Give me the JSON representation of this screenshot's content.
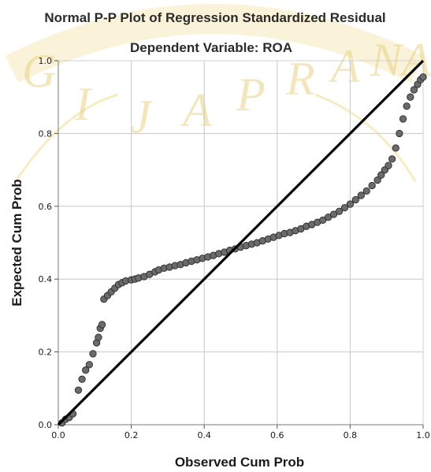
{
  "chart_data": {
    "type": "scatter",
    "title": "Normal P-P Plot of Regression Standardized Residual",
    "subtitle": "Dependent Variable: ROA",
    "xlabel": "Observed Cum Prob",
    "ylabel": "Expected Cum Prob",
    "xlim": [
      0,
      1
    ],
    "ylim": [
      0,
      1
    ],
    "x_ticks": [
      "0.0",
      "0.2",
      "0.4",
      "0.6",
      "0.8",
      "1.0"
    ],
    "y_ticks": [
      "0.0",
      "0.2",
      "0.4",
      "0.6",
      "0.8",
      "1.0"
    ],
    "grid": true,
    "reference_line": {
      "from": [
        0,
        0
      ],
      "to": [
        1,
        1
      ]
    },
    "series": [
      {
        "points": [
          [
            0.01,
            0.005
          ],
          [
            0.02,
            0.015
          ],
          [
            0.03,
            0.02
          ],
          [
            0.04,
            0.03
          ],
          [
            0.055,
            0.095
          ],
          [
            0.065,
            0.125
          ],
          [
            0.075,
            0.15
          ],
          [
            0.085,
            0.165
          ],
          [
            0.095,
            0.195
          ],
          [
            0.105,
            0.225
          ],
          [
            0.11,
            0.24
          ],
          [
            0.115,
            0.265
          ],
          [
            0.12,
            0.275
          ],
          [
            0.125,
            0.345
          ],
          [
            0.135,
            0.355
          ],
          [
            0.145,
            0.365
          ],
          [
            0.155,
            0.375
          ],
          [
            0.165,
            0.385
          ],
          [
            0.175,
            0.39
          ],
          [
            0.185,
            0.395
          ],
          [
            0.2,
            0.398
          ],
          [
            0.21,
            0.4
          ],
          [
            0.22,
            0.403
          ],
          [
            0.235,
            0.407
          ],
          [
            0.25,
            0.413
          ],
          [
            0.265,
            0.42
          ],
          [
            0.275,
            0.425
          ],
          [
            0.29,
            0.43
          ],
          [
            0.305,
            0.433
          ],
          [
            0.32,
            0.437
          ],
          [
            0.335,
            0.44
          ],
          [
            0.35,
            0.445
          ],
          [
            0.365,
            0.449
          ],
          [
            0.38,
            0.453
          ],
          [
            0.395,
            0.457
          ],
          [
            0.41,
            0.461
          ],
          [
            0.425,
            0.465
          ],
          [
            0.44,
            0.47
          ],
          [
            0.455,
            0.474
          ],
          [
            0.47,
            0.479
          ],
          [
            0.485,
            0.483
          ],
          [
            0.5,
            0.488
          ],
          [
            0.515,
            0.492
          ],
          [
            0.53,
            0.496
          ],
          [
            0.545,
            0.5
          ],
          [
            0.56,
            0.505
          ],
          [
            0.575,
            0.51
          ],
          [
            0.59,
            0.515
          ],
          [
            0.605,
            0.52
          ],
          [
            0.62,
            0.525
          ],
          [
            0.635,
            0.528
          ],
          [
            0.65,
            0.533
          ],
          [
            0.665,
            0.538
          ],
          [
            0.68,
            0.545
          ],
          [
            0.695,
            0.55
          ],
          [
            0.71,
            0.556
          ],
          [
            0.725,
            0.562
          ],
          [
            0.74,
            0.57
          ],
          [
            0.755,
            0.578
          ],
          [
            0.77,
            0.586
          ],
          [
            0.785,
            0.596
          ],
          [
            0.8,
            0.606
          ],
          [
            0.815,
            0.618
          ],
          [
            0.83,
            0.63
          ],
          [
            0.845,
            0.642
          ],
          [
            0.86,
            0.657
          ],
          [
            0.875,
            0.672
          ],
          [
            0.885,
            0.686
          ],
          [
            0.895,
            0.7
          ],
          [
            0.905,
            0.712
          ],
          [
            0.915,
            0.73
          ],
          [
            0.925,
            0.76
          ],
          [
            0.935,
            0.8
          ],
          [
            0.945,
            0.84
          ],
          [
            0.955,
            0.875
          ],
          [
            0.965,
            0.9
          ],
          [
            0.975,
            0.92
          ],
          [
            0.985,
            0.935
          ],
          [
            0.993,
            0.948
          ],
          [
            1.0,
            0.955
          ]
        ]
      }
    ],
    "colors": {
      "marker_fill": "#6b6b6b",
      "marker_stroke": "#2a2a2a",
      "line": "#000000",
      "grid": "#c8c8c8"
    }
  },
  "watermark": {
    "text": "GIJAPRANA"
  }
}
